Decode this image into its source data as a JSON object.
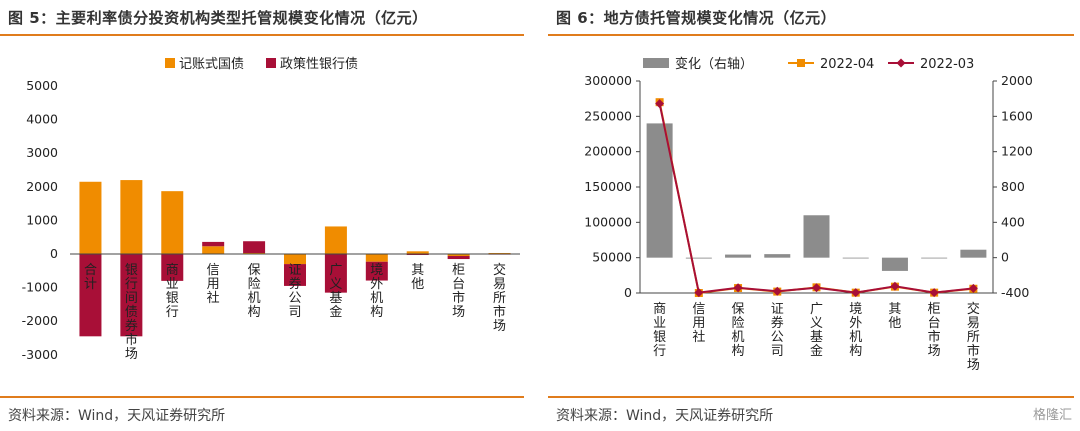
{
  "left": {
    "title": "图 5：主要利率债分投资机构类型托管规模变化情况（亿元）",
    "source": "资料来源：Wind，天风证券研究所"
  },
  "right": {
    "title": "图 6：地方债托管规模变化情况（亿元）",
    "source": "资料来源：Wind，天风证券研究所",
    "watermark": "格隆汇"
  },
  "colors": {
    "orange": "#f08c00",
    "crimson": "#a80f37",
    "gray": "#8c8c8c",
    "rule": "#e07c1c"
  },
  "chart_data": [
    {
      "type": "bar",
      "stacked": true,
      "title": "",
      "categories": [
        "合计",
        "银行间债券市场",
        "商业银行",
        "信用社",
        "保险机构",
        "证券公司",
        "广义基金",
        "境外机构",
        "其他",
        "柜台市场",
        "交易所市场"
      ],
      "series": [
        {
          "name": "记账式国债",
          "color": "#f08c00",
          "values": [
            2150,
            2200,
            1870,
            230,
            30,
            -300,
            820,
            -230,
            80,
            -60,
            30
          ]
        },
        {
          "name": "政策性银行债",
          "color": "#a80f37",
          "values": [
            -2450,
            -2450,
            -800,
            130,
            350,
            -650,
            -1150,
            -560,
            -30,
            -90,
            -10
          ]
        }
      ],
      "y_ticks": [
        5000,
        4000,
        3000,
        2000,
        1000,
        0,
        -1000,
        -2000,
        -3000
      ],
      "ylim": [
        -3000,
        5000
      ],
      "legend": "top"
    },
    {
      "type": "bar+line",
      "title": "",
      "categories": [
        "商业银行",
        "信用社",
        "保险机构",
        "证券公司",
        "广义基金",
        "境外机构",
        "其他",
        "柜台市场",
        "交易所市场"
      ],
      "bar_series": {
        "name": "变化（右轴）",
        "color": "#8c8c8c",
        "axis": "right",
        "values": [
          1520,
          -10,
          35,
          40,
          480,
          -8,
          -150,
          -5,
          90
        ]
      },
      "line_series": [
        {
          "name": "2022-04",
          "color": "#f08c00",
          "axis": "left",
          "values": [
            270000,
            0,
            7000,
            2000,
            8000,
            500,
            9000,
            500,
            6000
          ]
        },
        {
          "name": "2022-03",
          "color": "#a80f37",
          "axis": "left",
          "values": [
            268000,
            500,
            7500,
            2500,
            7500,
            500,
            9500,
            500,
            6500
          ]
        }
      ],
      "left_ticks": [
        300000,
        250000,
        200000,
        150000,
        100000,
        50000,
        0
      ],
      "right_ticks": [
        2000,
        1600,
        1200,
        800,
        400,
        0,
        -400
      ],
      "ylim_left": [
        0,
        300000
      ],
      "ylim_right": [
        -400,
        2000
      ],
      "legend": "top"
    }
  ]
}
